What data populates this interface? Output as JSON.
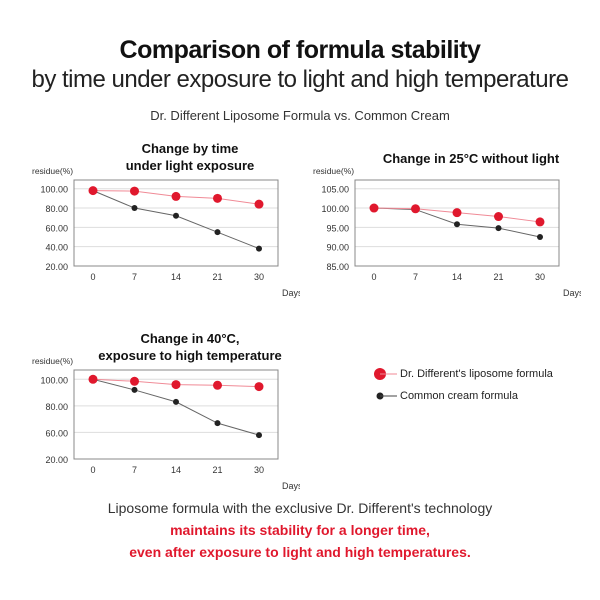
{
  "header": {
    "title": "Comparison of formula stability",
    "subtitle": "by time under exposure to light and high temperature",
    "comparison": "Dr. Different Liposome Formula vs. Common Cream"
  },
  "colors": {
    "liposome": "#e0182d",
    "common": "#222222",
    "liposome_line": "#f08a96",
    "common_line": "#666666"
  },
  "legend": {
    "liposome": "Dr. Different's liposome formula",
    "common": "Common cream formula"
  },
  "footer": {
    "line1": "Liposome formula with the exclusive Dr. Different's technology",
    "line2": "maintains its stability for a longer time,",
    "line3": "even after exposure to light and high temperatures."
  },
  "chart_data": [
    {
      "type": "line",
      "title": [
        "Change by time",
        "under light exposure"
      ],
      "ylabel": "residue(%)",
      "xlabel": "Days",
      "categories": [
        "0",
        "7",
        "14",
        "21",
        "30"
      ],
      "yticks": [
        "20.00",
        "40.00",
        "60.00",
        "80.00",
        "100.00"
      ],
      "ylim": [
        20,
        110
      ],
      "series": [
        {
          "name": "Dr. Different's liposome formula",
          "values": [
            98,
            97.5,
            92,
            90,
            84
          ]
        },
        {
          "name": "Common cream formula",
          "values": [
            98,
            80,
            72,
            55,
            38
          ]
        }
      ]
    },
    {
      "type": "line",
      "title": [
        "Change in 25°C without light"
      ],
      "ylabel": "residue(%)",
      "xlabel": "Days",
      "categories": [
        "0",
        "7",
        "14",
        "21",
        "30"
      ],
      "yticks": [
        "85.00",
        "90.00",
        "95.00",
        "100.00",
        "105.00"
      ],
      "ylim": [
        85,
        107.5
      ],
      "series": [
        {
          "name": "Dr. Different's liposome formula",
          "values": [
            100,
            99.8,
            98.8,
            97.8,
            96.4
          ]
        },
        {
          "name": "Common cream formula",
          "values": [
            100,
            99.6,
            95.8,
            94.8,
            92.5
          ]
        }
      ]
    },
    {
      "type": "line",
      "title": [
        "Change in 40°C,",
        "exposure to high temperature"
      ],
      "ylabel": "residue(%)",
      "xlabel": "Days",
      "categories": [
        "0",
        "7",
        "14",
        "21",
        "30"
      ],
      "yticks": [
        "20.00",
        "60.00",
        "80.00",
        "100.00"
      ],
      "ylim": [
        40,
        107
      ],
      "series": [
        {
          "name": "Dr. Different's liposome formula",
          "values": [
            100,
            98.5,
            96,
            95.5,
            94.5
          ]
        },
        {
          "name": "Common cream formula",
          "values": [
            100,
            92,
            83,
            67,
            58
          ]
        }
      ]
    }
  ]
}
